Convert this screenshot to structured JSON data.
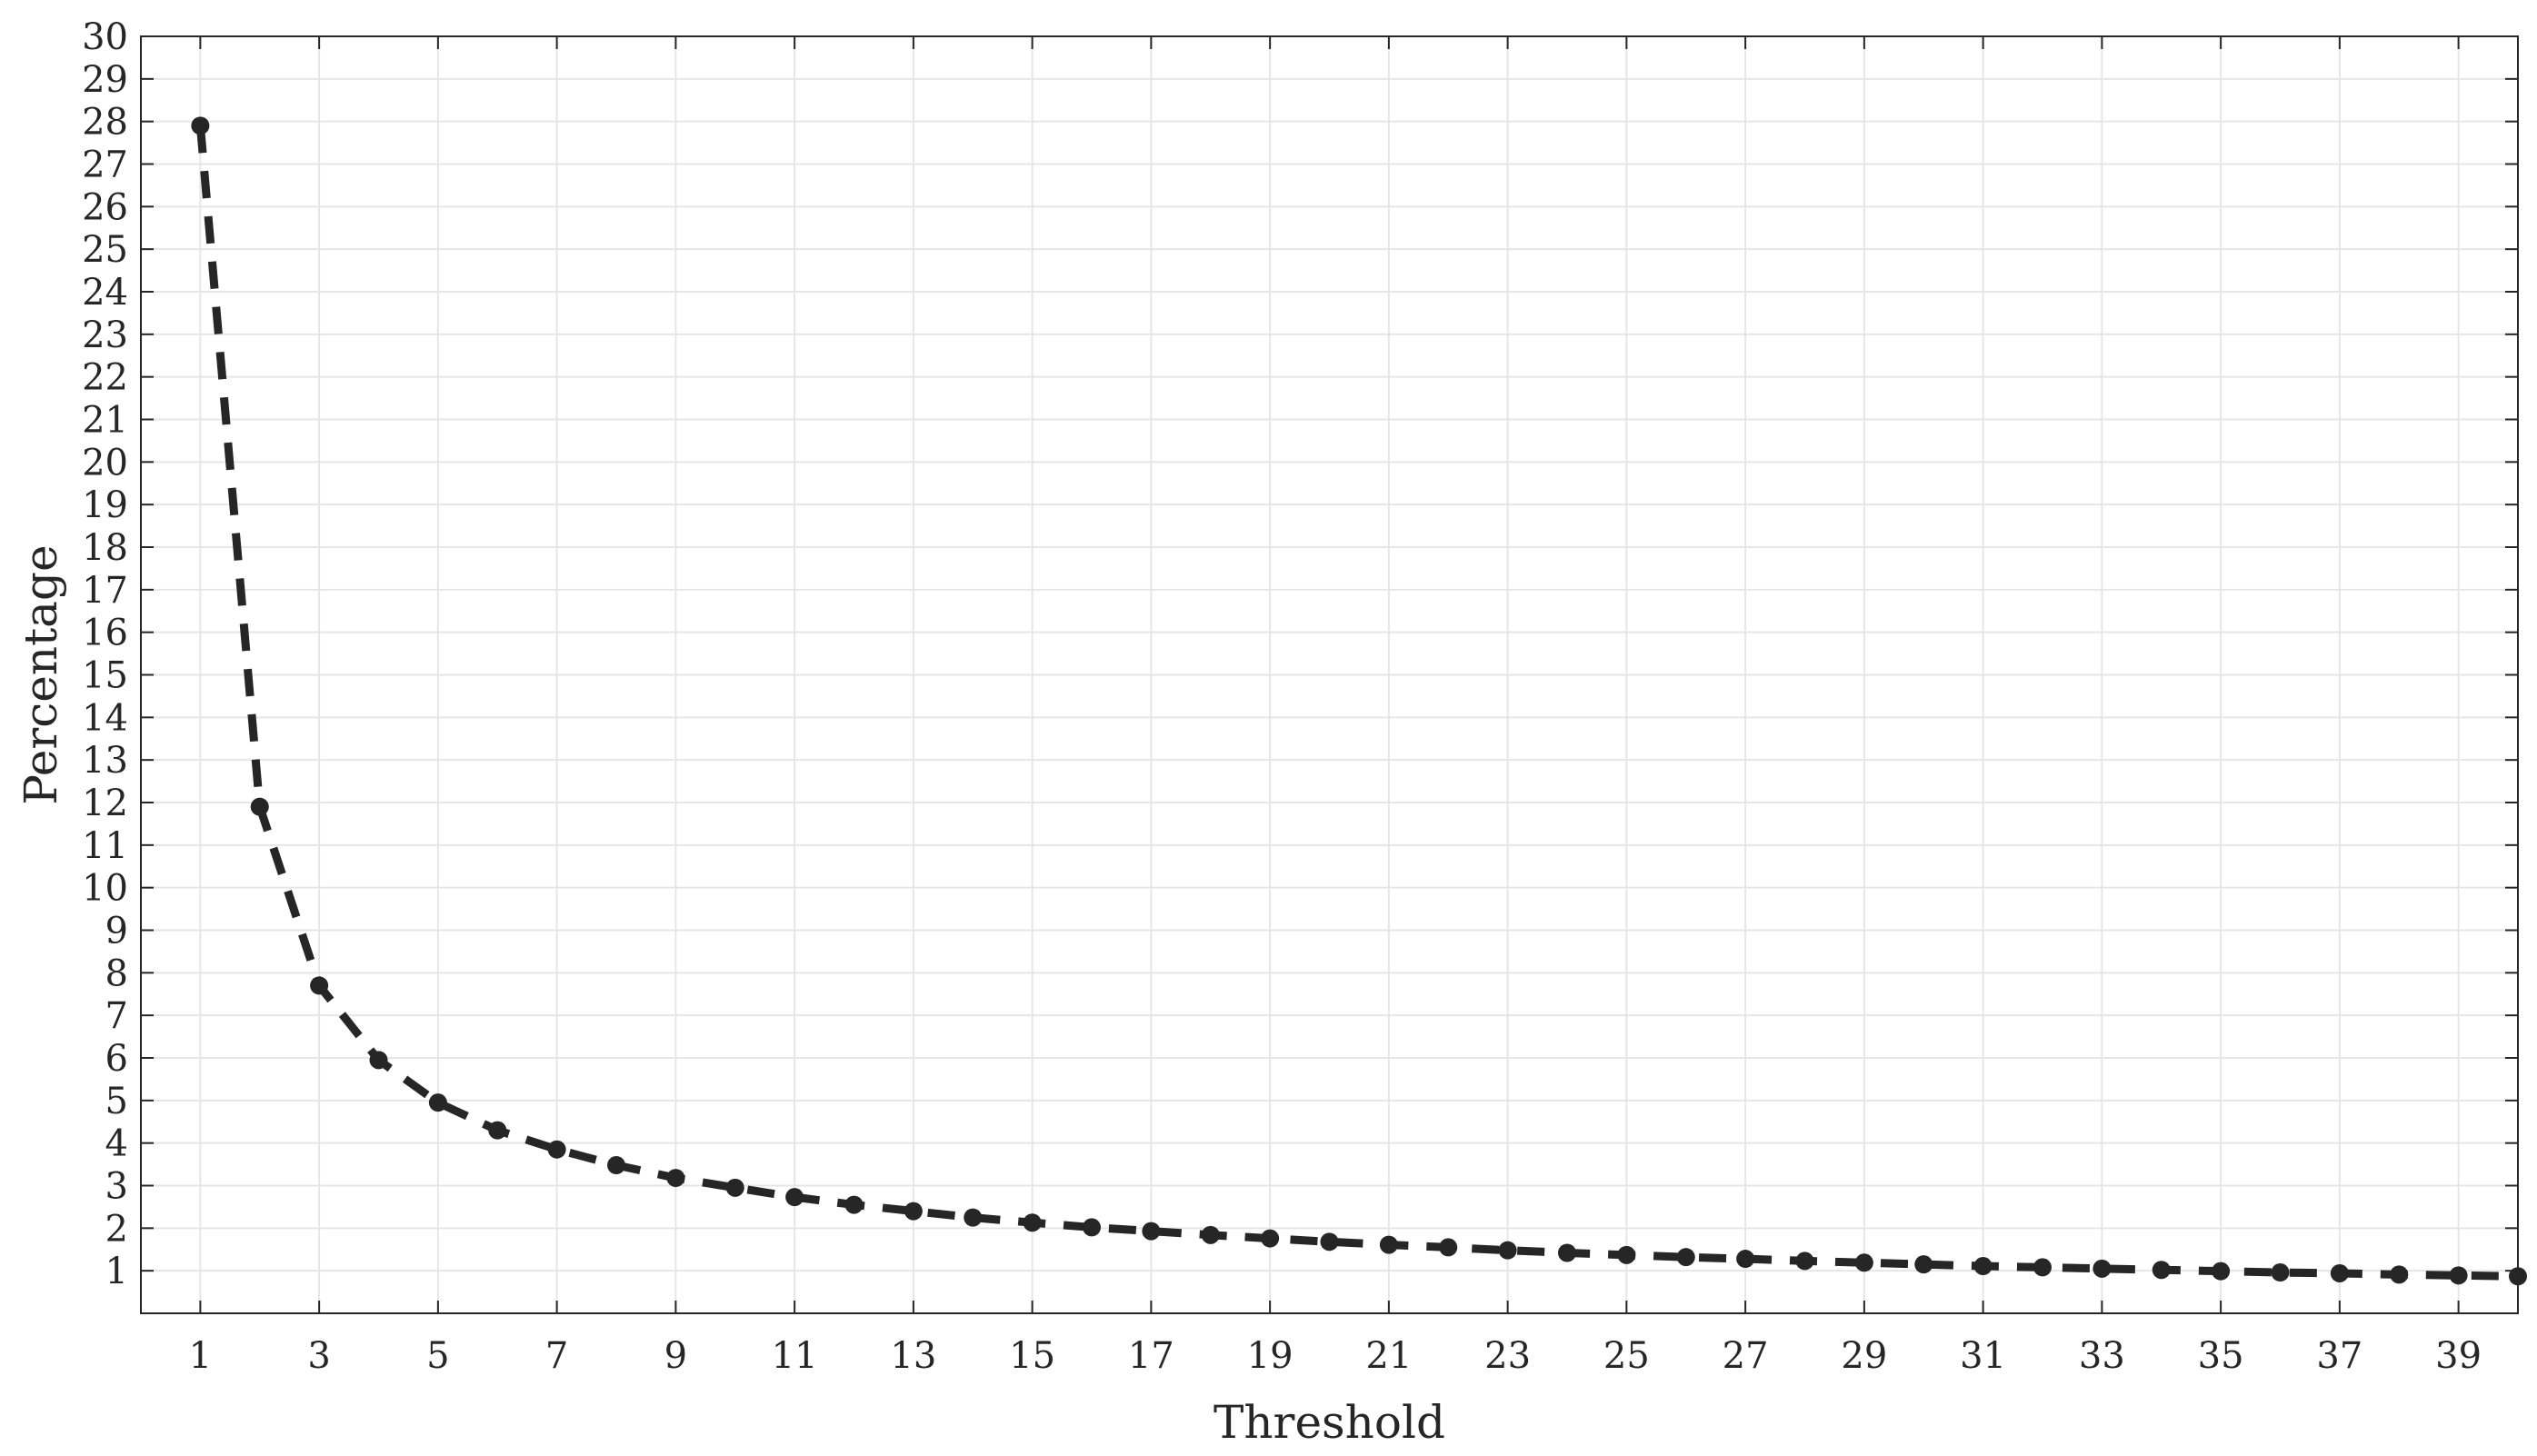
{
  "chart_data": {
    "type": "line",
    "title": "",
    "xlabel": "Threshold",
    "ylabel": "Percentage",
    "xlim": [
      0,
      40
    ],
    "ylim": [
      0,
      30
    ],
    "grid": true,
    "x_ticks": [
      1,
      3,
      5,
      7,
      9,
      11,
      13,
      15,
      17,
      19,
      21,
      23,
      25,
      27,
      29,
      31,
      33,
      35,
      37,
      39
    ],
    "y_ticks": [
      1,
      2,
      3,
      4,
      5,
      6,
      7,
      8,
      9,
      10,
      11,
      12,
      13,
      14,
      15,
      16,
      17,
      18,
      19,
      20,
      21,
      22,
      23,
      24,
      25,
      26,
      27,
      28,
      29,
      30
    ],
    "line_style": "dashed",
    "marker": "circle",
    "colors": {
      "series": "#262626",
      "grid": "#e6e6e6",
      "axis": "#262626",
      "background": "#ffffff"
    },
    "series": [
      {
        "x": [
          1,
          2,
          3,
          4,
          5,
          6,
          7,
          8,
          9,
          10,
          11,
          12,
          13,
          14,
          15,
          16,
          17,
          18,
          19,
          20,
          21,
          22,
          23,
          24,
          25,
          26,
          27,
          28,
          29,
          30,
          31,
          32,
          33,
          34,
          35,
          36,
          37,
          38,
          39,
          40
        ],
        "values": [
          27.9,
          11.9,
          7.7,
          5.95,
          4.95,
          4.3,
          3.85,
          3.48,
          3.18,
          2.95,
          2.73,
          2.55,
          2.4,
          2.25,
          2.13,
          2.02,
          1.93,
          1.84,
          1.76,
          1.68,
          1.61,
          1.55,
          1.48,
          1.42,
          1.37,
          1.32,
          1.28,
          1.23,
          1.19,
          1.15,
          1.11,
          1.08,
          1.05,
          1.02,
          0.99,
          0.96,
          0.94,
          0.91,
          0.89,
          0.87
        ]
      }
    ]
  }
}
